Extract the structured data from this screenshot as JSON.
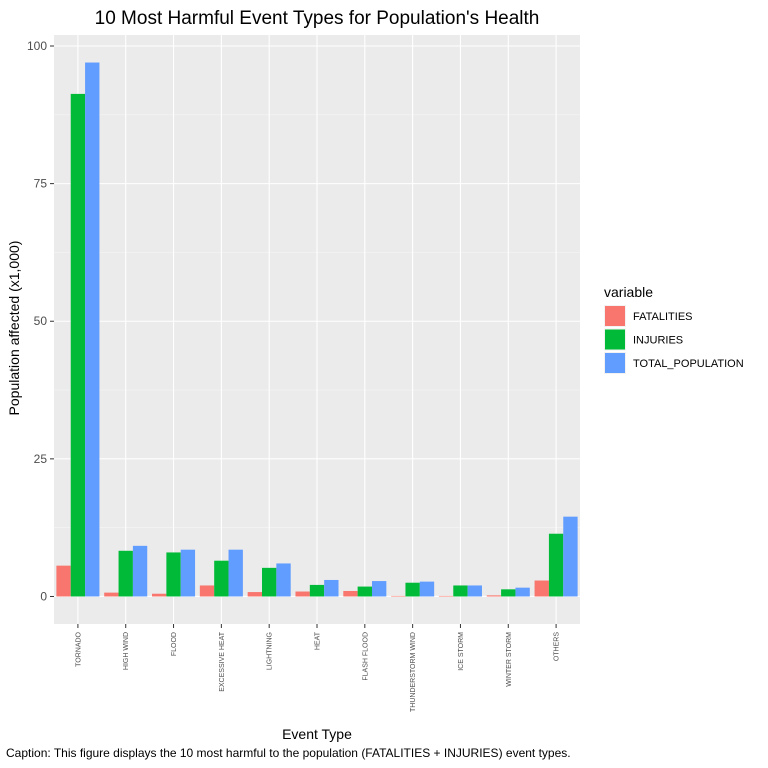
{
  "chart_data": {
    "type": "bar",
    "title": "10 Most Harmful Event Types for Population's Health",
    "xlabel": "Event Type",
    "ylabel": "Population affected (x1,000)",
    "caption": "Caption: This figure displays the 10 most harmful to the population (FATALITIES + INJURIES) event types.",
    "categories": [
      "TORNADO",
      "HIGH WIND",
      "FLOOD",
      "EXCESSIVE HEAT",
      "LIGHTNING",
      "HEAT",
      "FLASH FLOOD",
      "THUNDERSTORM WIND",
      "ICE STORM",
      "WINTER STORM",
      "OTHERS"
    ],
    "legend_title": "variable",
    "legend_position": "right",
    "series": [
      {
        "name": "FATALITIES",
        "color": "#F8766D",
        "values": [
          5.6,
          0.7,
          0.5,
          2.0,
          0.8,
          0.9,
          1.0,
          0.1,
          0.1,
          0.2,
          2.9
        ]
      },
      {
        "name": "INJURIES",
        "color": "#00BA38",
        "values": [
          91.3,
          8.3,
          8.0,
          6.5,
          5.2,
          2.1,
          1.8,
          2.5,
          2.0,
          1.3,
          11.4
        ]
      },
      {
        "name": "TOTAL_POPULATION",
        "color": "#619CFF",
        "values": [
          97.0,
          9.2,
          8.5,
          8.5,
          6.0,
          3.0,
          2.8,
          2.7,
          2.0,
          1.6,
          14.5
        ]
      }
    ],
    "ylim": [
      -5,
      102
    ],
    "yticks": [
      0,
      25,
      50,
      75,
      100
    ],
    "grid": true
  }
}
